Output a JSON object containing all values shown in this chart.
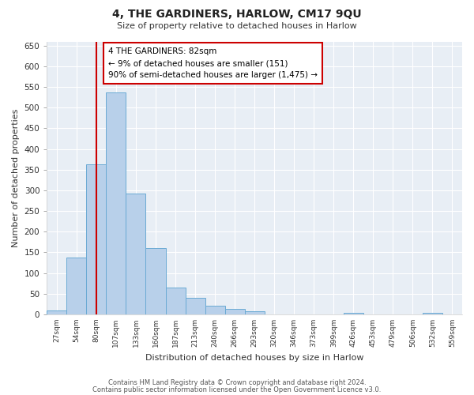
{
  "title": "4, THE GARDINERS, HARLOW, CM17 9QU",
  "subtitle": "Size of property relative to detached houses in Harlow",
  "xlabel": "Distribution of detached houses by size in Harlow",
  "ylabel": "Number of detached properties",
  "bin_labels": [
    "27sqm",
    "54sqm",
    "80sqm",
    "107sqm",
    "133sqm",
    "160sqm",
    "187sqm",
    "213sqm",
    "240sqm",
    "266sqm",
    "293sqm",
    "320sqm",
    "346sqm",
    "373sqm",
    "399sqm",
    "426sqm",
    "453sqm",
    "479sqm",
    "506sqm",
    "532sqm",
    "559sqm"
  ],
  "bar_values": [
    10,
    137,
    362,
    536,
    292,
    160,
    65,
    40,
    20,
    14,
    8,
    0,
    0,
    0,
    0,
    3,
    0,
    0,
    0,
    3,
    0
  ],
  "bar_color": "#b8d0ea",
  "bar_edge_color": "#6aaad4",
  "vline_x": 2,
  "vline_color": "#cc0000",
  "annotation_title": "4 THE GARDINERS: 82sqm",
  "annotation_line1": "← 9% of detached houses are smaller (151)",
  "annotation_line2": "90% of semi-detached houses are larger (1,475) →",
  "annotation_box_facecolor": "#ffffff",
  "annotation_box_edgecolor": "#cc0000",
  "ylim": [
    0,
    660
  ],
  "yticks": [
    0,
    50,
    100,
    150,
    200,
    250,
    300,
    350,
    400,
    450,
    500,
    550,
    600,
    650
  ],
  "footer1": "Contains HM Land Registry data © Crown copyright and database right 2024.",
  "footer2": "Contains public sector information licensed under the Open Government Licence v3.0.",
  "fig_facecolor": "#ffffff",
  "plot_facecolor": "#e8eef5",
  "grid_color": "#ffffff",
  "spine_color": "#cccccc"
}
